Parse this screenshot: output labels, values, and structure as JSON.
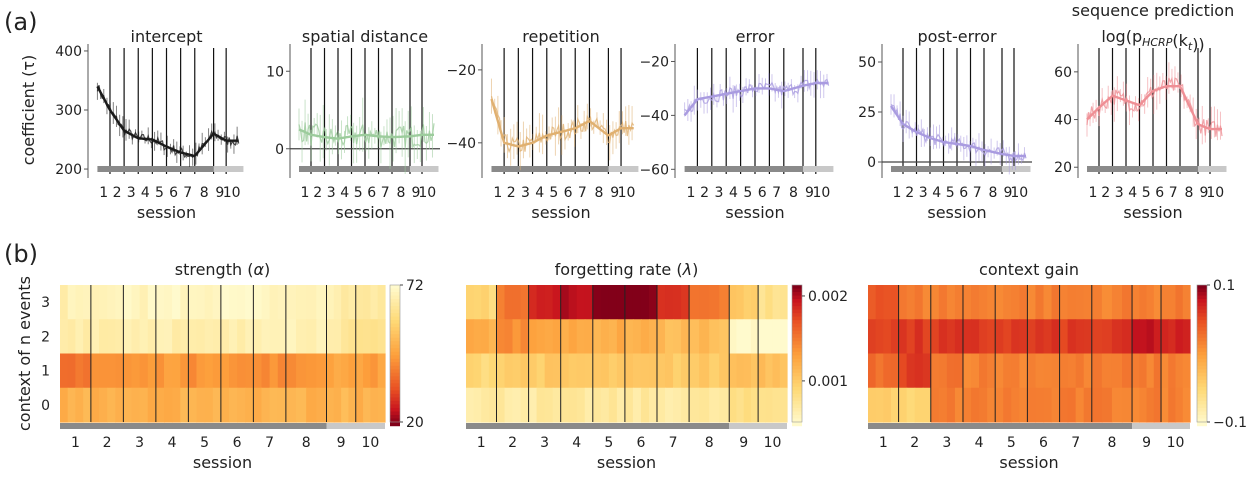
{
  "panel_labels": [
    "(a)",
    "(b)"
  ],
  "chart_data": [
    {
      "type": "line",
      "title": "intercept",
      "ylabel": "coefficient (τ)",
      "xlabel": "session",
      "ylim": [
        195,
        405
      ],
      "yticks": [
        200,
        300,
        400
      ],
      "color": "#1a1a1a",
      "x_sessions": [
        1,
        2,
        3,
        4,
        5,
        6,
        7,
        8,
        9,
        10
      ],
      "session_means": [
        340,
        300,
        265,
        252,
        250,
        238,
        228,
        222,
        260,
        248
      ],
      "noise": 14
    },
    {
      "type": "line",
      "title": "spatial distance",
      "ylabel": "",
      "xlabel": "session",
      "ylim": [
        -3,
        13
      ],
      "yticks": [
        0,
        10
      ],
      "zero_line": 0,
      "color": "#9ccc9c",
      "x_sessions": [
        1,
        2,
        3,
        4,
        5,
        6,
        7,
        8,
        9,
        10
      ],
      "session_means": [
        2.5,
        1.8,
        1.5,
        1.3,
        1.6,
        1.8,
        1.6,
        1.5,
        1.6,
        1.8
      ],
      "noise": 2.5
    },
    {
      "type": "line",
      "title": "repetition",
      "ylabel": "",
      "xlabel": "session",
      "ylim": [
        -48,
        -14
      ],
      "yticks": [
        -20,
        -40
      ],
      "color": "#e0b070",
      "x_sessions": [
        1,
        2,
        3,
        4,
        5,
        6,
        7,
        8,
        9,
        10
      ],
      "session_means": [
        -28,
        -40,
        -41,
        -40,
        -38,
        -37,
        -36,
        -34,
        -38,
        -36
      ],
      "noise": 4
    },
    {
      "type": "line",
      "title": "error",
      "ylabel": "",
      "xlabel": "session",
      "ylim": [
        -61,
        -15
      ],
      "yticks": [
        -20,
        -40,
        -60
      ],
      "color": "#a99be0",
      "x_sessions": [
        1,
        2,
        3,
        4,
        5,
        6,
        7,
        8,
        9,
        10
      ],
      "session_means": [
        -40,
        -34,
        -33,
        -32,
        -31,
        -30,
        -30,
        -31,
        -29,
        -28
      ],
      "noise": 4
    },
    {
      "type": "line",
      "title": "post-error",
      "ylabel": "",
      "xlabel": "session",
      "ylim": [
        -5,
        57
      ],
      "yticks": [
        0,
        25,
        50
      ],
      "zero_line": 0,
      "color": "#a99be0",
      "x_sessions": [
        1,
        2,
        3,
        4,
        5,
        6,
        7,
        8,
        9,
        10
      ],
      "session_means": [
        28,
        19,
        15,
        12,
        10,
        9,
        8,
        6,
        4,
        3
      ],
      "noise": 5
    },
    {
      "type": "line",
      "title": "sequence prediction",
      "title2": "log(p",
      "title2_sub": "HCRP",
      "title2_rest": "(k",
      "title2_sub2": "t",
      "title2_end": "))",
      "ylabel": "",
      "xlabel": "session",
      "ylim": [
        18,
        70
      ],
      "yticks": [
        20,
        40,
        60
      ],
      "color": "#ef8f95",
      "x_sessions": [
        1,
        2,
        3,
        4,
        5,
        6,
        7,
        8,
        9,
        10
      ],
      "session_means": [
        40,
        45,
        50,
        48,
        46,
        52,
        54,
        54,
        38,
        36
      ],
      "noise": 6
    },
    {
      "type": "heatmap",
      "title": "strength (",
      "title_sym": "α",
      "title_end": ")",
      "ylabel": "context of n events",
      "xlabel": "session",
      "rows": [
        "3",
        "2",
        "1",
        "0"
      ],
      "x_sessions": [
        1,
        2,
        3,
        4,
        5,
        6,
        7,
        8,
        9,
        10
      ],
      "colorbar_min": 20,
      "colorbar_max": 72,
      "colorbar_ticks": [
        "72",
        "20"
      ],
      "colormap": "YlOrRd_reversed",
      "values": [
        [
          68,
          68,
          70,
          71,
          71,
          71,
          70,
          70,
          67,
          66
        ],
        [
          66,
          66,
          67,
          67,
          68,
          68,
          67,
          68,
          65,
          64
        ],
        [
          38,
          44,
          45,
          45,
          44,
          44,
          43,
          44,
          47,
          46
        ],
        [
          50,
          50,
          50,
          50,
          50,
          50,
          50,
          50,
          51,
          50
        ]
      ]
    },
    {
      "type": "heatmap",
      "title": "forgetting rate (",
      "title_sym": "λ",
      "title_end": ")",
      "ylabel": "",
      "xlabel": "session",
      "rows": [
        "3",
        "2",
        "1",
        "0"
      ],
      "x_sessions": [
        1,
        2,
        3,
        4,
        5,
        6,
        7,
        8,
        9,
        10
      ],
      "colorbar_min": 0.0005,
      "colorbar_max": 0.0021,
      "colorbar_ticks": [
        "0.002",
        "0.001"
      ],
      "colormap": "YlOrRd",
      "values": [
        [
          0.0009,
          0.0015,
          0.0019,
          0.002,
          0.0021,
          0.0021,
          0.0018,
          0.0015,
          0.001,
          0.0008
        ],
        [
          0.0012,
          0.0014,
          0.0013,
          0.0012,
          0.0012,
          0.0012,
          0.0011,
          0.0011,
          0.0005,
          0.0004
        ],
        [
          0.0009,
          0.001,
          0.001,
          0.001,
          0.001,
          0.001,
          0.001,
          0.001,
          0.0011,
          0.0011
        ],
        [
          0.0007,
          0.0007,
          0.0007,
          0.0007,
          0.0007,
          0.0007,
          0.0007,
          0.0007,
          0.0008,
          0.0008
        ]
      ]
    },
    {
      "type": "heatmap",
      "title": "context gain",
      "ylabel": "",
      "xlabel": "session",
      "rows": [
        "3",
        "2",
        "1",
        "0"
      ],
      "x_sessions": [
        1,
        2,
        3,
        4,
        5,
        6,
        7,
        8,
        9,
        10
      ],
      "colorbar_min": -0.1,
      "colorbar_max": 0.1,
      "colorbar_ticks": [
        "0.1",
        "-0.1"
      ],
      "colormap": "YlOrRd",
      "values": [
        [
          0.05,
          0.02,
          0.02,
          0.02,
          0.02,
          0.02,
          0.02,
          0.02,
          0.02,
          0.02
        ],
        [
          0.06,
          0.06,
          0.06,
          0.06,
          0.06,
          0.06,
          0.06,
          0.06,
          0.08,
          0.07
        ],
        [
          0.03,
          0.06,
          0.03,
          0.02,
          0.02,
          0.02,
          0.02,
          0.02,
          0.02,
          0.02
        ],
        [
          -0.04,
          -0.05,
          0.02,
          0.02,
          0.02,
          0.02,
          0.02,
          0.02,
          0.02,
          0.02
        ]
      ]
    }
  ]
}
